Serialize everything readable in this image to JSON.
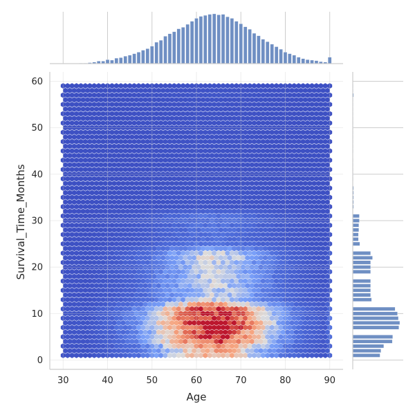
{
  "chart_data": {
    "type": "heatmap",
    "subtype": "hexbin jointplot with marginal histograms",
    "xlabel": "Age",
    "ylabel": "Survival_Time_Months",
    "x_range": [
      30,
      90
    ],
    "y_range": [
      1,
      59
    ],
    "x_ticks": [
      "30",
      "40",
      "50",
      "60",
      "70",
      "80",
      "90"
    ],
    "y_ticks": [
      "0",
      "10",
      "20",
      "30",
      "40",
      "50",
      "60"
    ],
    "grid": true,
    "colormap": "coolwarm",
    "colors": {
      "low": "#3b4cc0",
      "mid": "#dddddd",
      "high": "#b40426",
      "histogram": "#6f8fc3",
      "grid": "#cccccc",
      "axis": "#cccccc"
    },
    "marginal_x_histogram": {
      "bin_centers": [
        34,
        35,
        36,
        37,
        38,
        39,
        40,
        41,
        42,
        43,
        44,
        45,
        46,
        47,
        48,
        49,
        50,
        51,
        52,
        53,
        54,
        55,
        56,
        57,
        58,
        59,
        60,
        61,
        62,
        63,
        64,
        65,
        66,
        67,
        68,
        69,
        70,
        71,
        72,
        73,
        74,
        75,
        76,
        77,
        78,
        79,
        80,
        81,
        82,
        83,
        84,
        85,
        86,
        87,
        88,
        89,
        90
      ],
      "relative_counts": [
        0.01,
        0.01,
        0.02,
        0.03,
        0.05,
        0.05,
        0.08,
        0.07,
        0.11,
        0.12,
        0.15,
        0.17,
        0.2,
        0.23,
        0.27,
        0.3,
        0.35,
        0.43,
        0.47,
        0.55,
        0.6,
        0.64,
        0.7,
        0.73,
        0.79,
        0.85,
        0.91,
        0.95,
        0.97,
        0.99,
        1.0,
        0.98,
        0.99,
        0.94,
        0.91,
        0.85,
        0.8,
        0.74,
        0.69,
        0.61,
        0.56,
        0.49,
        0.44,
        0.39,
        0.34,
        0.29,
        0.23,
        0.2,
        0.17,
        0.13,
        0.1,
        0.08,
        0.07,
        0.06,
        0.04,
        0.03,
        0.13
      ]
    },
    "marginal_y_histogram": {
      "bin_centers": [
        1,
        2,
        3,
        4,
        5,
        6,
        7,
        8,
        9,
        10,
        11,
        12,
        13,
        14,
        15,
        16,
        17,
        18,
        19,
        20,
        21,
        22,
        23,
        24,
        25,
        26,
        27,
        28,
        29,
        30,
        31,
        32,
        33,
        34,
        35,
        36,
        37,
        38,
        39,
        40,
        41,
        42,
        43,
        44,
        45,
        46,
        47,
        48,
        49,
        50,
        51,
        52,
        53,
        54,
        55,
        56,
        57,
        58,
        59
      ],
      "relative_counts": [
        0.58,
        0.6,
        0.66,
        0.84,
        0.85,
        0.0,
        0.98,
        1.0,
        0.97,
        0.95,
        0.9,
        0.0,
        0.4,
        0.38,
        0.38,
        0.38,
        0.38,
        0.0,
        0.38,
        0.38,
        0.38,
        0.42,
        0.38,
        0.0,
        0.15,
        0.12,
        0.12,
        0.13,
        0.13,
        0.14,
        0.14,
        0.0,
        0.02,
        0.02,
        0.02,
        0.02,
        0.02,
        0.0,
        0.01,
        0.01,
        0.01,
        0.01,
        0.01,
        0.0,
        0.01,
        0.01,
        0.01,
        0.01,
        0.01,
        0.01,
        0.01,
        0.01,
        0.01,
        0.01,
        0.01,
        0.01,
        0.02,
        0.01,
        0.01
      ]
    }
  }
}
